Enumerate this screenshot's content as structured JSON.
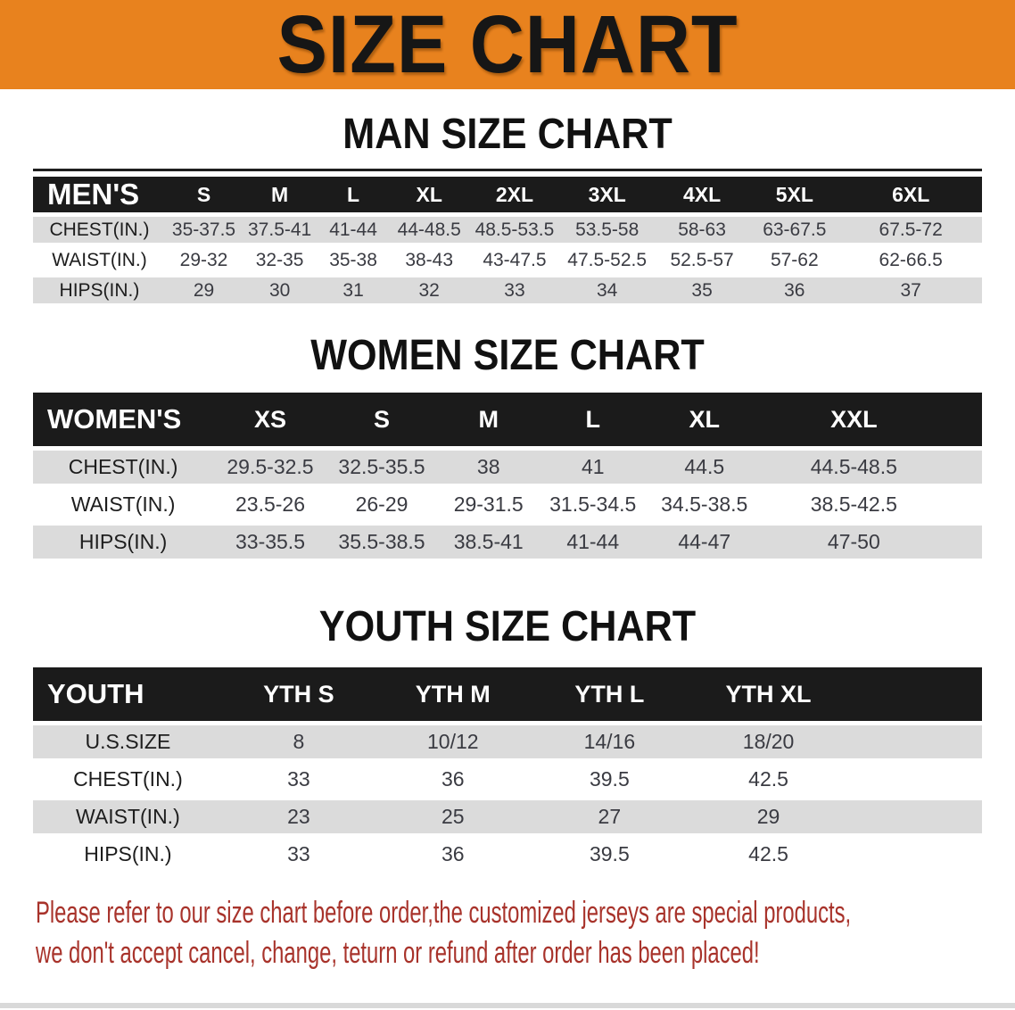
{
  "banner": {
    "title": "SIZE CHART"
  },
  "theme": {
    "banner_bg": "#E8821E",
    "header_bar": "#1B1B1B",
    "row_shade": "#DBDBDB",
    "notice_red": "#A8332B",
    "value_text": "#3A3B42"
  },
  "sections": [
    {
      "heading": "MAN SIZE CHART",
      "table": {
        "header_label": "MEN'S",
        "columns": [
          "S",
          "M",
          "L",
          "XL",
          "2XL",
          "3XL",
          "4XL",
          "5XL",
          "6XL"
        ],
        "rows": [
          {
            "label": "CHEST(IN.)",
            "values": [
              "35-37.5",
              "37.5-41",
              "41-44",
              "44-48.5",
              "48.5-53.5",
              "53.5-58",
              "58-63",
              "63-67.5",
              "67.5-72"
            ]
          },
          {
            "label": "WAIST(IN.)",
            "values": [
              "29-32",
              "32-35",
              "35-38",
              "38-43",
              "43-47.5",
              "47.5-52.5",
              "52.5-57",
              "57-62",
              "62-66.5"
            ]
          },
          {
            "label": "HIPS(IN.)",
            "values": [
              "29",
              "30",
              "31",
              "32",
              "33",
              "34",
              "35",
              "36",
              "37"
            ]
          }
        ]
      }
    },
    {
      "heading": "WOMEN SIZE CHART",
      "table": {
        "header_label": "WOMEN'S",
        "columns": [
          "XS",
          "S",
          "M",
          "L",
          "XL",
          "XXL"
        ],
        "rows": [
          {
            "label": "CHEST(IN.)",
            "values": [
              "29.5-32.5",
              "32.5-35.5",
              "38",
              "41",
              "44.5",
              "44.5-48.5"
            ]
          },
          {
            "label": "WAIST(IN.)",
            "values": [
              "23.5-26",
              "26-29",
              "29-31.5",
              "31.5-34.5",
              "34.5-38.5",
              "38.5-42.5"
            ]
          },
          {
            "label": "HIPS(IN.)",
            "values": [
              "33-35.5",
              "35.5-38.5",
              "38.5-41",
              "41-44",
              "44-47",
              "47-50"
            ]
          }
        ]
      }
    },
    {
      "heading": "YOUTH SIZE CHART",
      "table": {
        "header_label": "YOUTH",
        "columns": [
          "YTH S",
          "YTH M",
          "YTH L",
          "YTH XL"
        ],
        "rows": [
          {
            "label": "U.S.SIZE",
            "values": [
              "8",
              "10/12",
              "14/16",
              "18/20"
            ]
          },
          {
            "label": "CHEST(IN.)",
            "values": [
              "33",
              "36",
              "39.5",
              "42.5"
            ]
          },
          {
            "label": "WAIST(IN.)",
            "values": [
              "23",
              "25",
              "27",
              "29"
            ]
          },
          {
            "label": "HIPS(IN.)",
            "values": [
              "33",
              "36",
              "39.5",
              "42.5"
            ]
          }
        ]
      }
    }
  ],
  "footer": {
    "line1": "Please refer to our size chart before order,the customized jerseys are special products,",
    "line2": "we don't accept cancel, change, teturn or refund after order has been placed!"
  }
}
